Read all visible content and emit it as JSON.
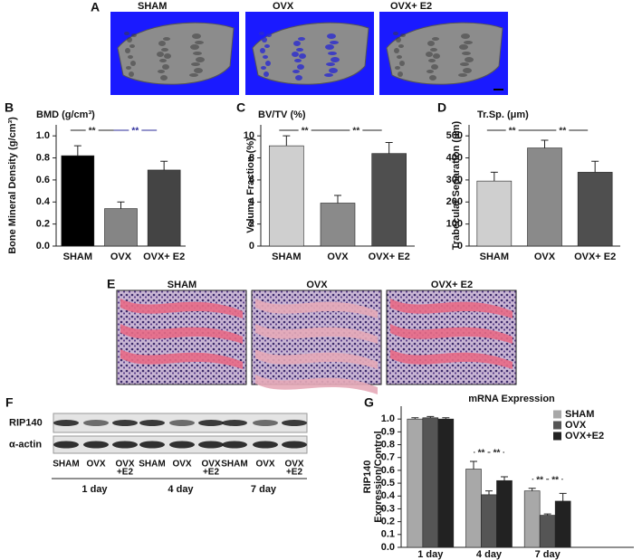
{
  "panels": {
    "A": {
      "label": "A",
      "captions": [
        "SHAM",
        "OVX",
        "OVX+ E2"
      ]
    },
    "E": {
      "label": "E",
      "captions": [
        "SHAM",
        "OVX",
        "OVX+ E2"
      ]
    },
    "F": {
      "label": "F",
      "rows": [
        "RIP140",
        "α-actin"
      ],
      "lanes": [
        [
          "SHAM"
        ],
        [
          "OVX"
        ],
        [
          "OVX",
          "+E2"
        ],
        [
          "SHAM"
        ],
        [
          "OVX"
        ],
        [
          "OVX",
          "+E2"
        ],
        [
          "SHAM"
        ],
        [
          "OVX"
        ],
        [
          "OVX",
          "+E2"
        ]
      ],
      "groups": [
        "1 day",
        "4 day",
        "7 day"
      ]
    }
  },
  "chart_data": [
    {
      "type": "bar",
      "panel": "B",
      "title": "BMD (g/cm³)",
      "ylabel": [
        "Bone Mineral Density (g/cm³)"
      ],
      "categories": [
        "SHAM",
        "OVX",
        "OVX+ E2"
      ],
      "values": [
        0.82,
        0.34,
        0.69
      ],
      "errors": [
        0.09,
        0.06,
        0.08
      ],
      "colors": [
        "#000000",
        "#858585",
        "#444444"
      ],
      "ylim": [
        0,
        1.1
      ],
      "yticks": [
        {
          "value": 0,
          "label": "0.0"
        },
        0.2,
        0.4,
        0.6,
        0.8,
        {
          "value": 1,
          "label": "1.0"
        }
      ],
      "annotations": [
        {
          "text": "**",
          "color": "#222222"
        },
        {
          "text": "**",
          "color": "#2b2b9a"
        }
      ]
    },
    {
      "type": "bar",
      "panel": "C",
      "title": "BV/TV (%)",
      "ylabel": [
        "Volume Fraction (%)"
      ],
      "categories": [
        "SHAM",
        "OVX",
        "OVX+ E2"
      ],
      "values": [
        9.1,
        3.9,
        8.4
      ],
      "errors": [
        0.9,
        0.7,
        1.0
      ],
      "colors": [
        "#cfcfcf",
        "#8a8a8a",
        "#4f4f4f"
      ],
      "ylim": [
        0,
        11
      ],
      "yticks": [
        0,
        2,
        4,
        6,
        8,
        10
      ],
      "annotations": [
        {
          "text": "**",
          "color": "#222222"
        },
        {
          "text": "**",
          "color": "#222222"
        }
      ]
    },
    {
      "type": "bar",
      "panel": "D",
      "title": "Tr.Sp. (μm)",
      "ylabel": [
        "Trabecular Separation (μm)"
      ],
      "categories": [
        "SHAM",
        "OVX",
        "OVX+ E2"
      ],
      "values": [
        295,
        445,
        335
      ],
      "errors": [
        40,
        35,
        50
      ],
      "colors": [
        "#cfcfcf",
        "#8a8a8a",
        "#4f4f4f"
      ],
      "ylim": [
        0,
        550
      ],
      "yticks": [
        0,
        100,
        200,
        300,
        400,
        500
      ],
      "annotations": [
        {
          "text": "**",
          "color": "#222222"
        },
        {
          "text": "**",
          "color": "#222222"
        }
      ]
    },
    {
      "type": "bar",
      "panel": "G",
      "title": "mRNA Expression",
      "ylabel": [
        "RIP140",
        "Expression/Control"
      ],
      "categories": [
        "1 day",
        "4 day",
        "7 day"
      ],
      "series": [
        {
          "name": "SHAM",
          "color": "#a8a8a8",
          "values": [
            1.0,
            0.61,
            0.44
          ],
          "errors": [
            0.01,
            0.06,
            0.02
          ]
        },
        {
          "name": "OVX",
          "color": "#555555",
          "values": [
            1.01,
            0.41,
            0.25
          ],
          "errors": [
            0.01,
            0.03,
            0.01
          ]
        },
        {
          "name": "OVX+E2",
          "color": "#222222",
          "values": [
            1.0,
            0.52,
            0.36
          ],
          "errors": [
            0.01,
            0.03,
            0.06
          ]
        }
      ],
      "ylim": [
        0,
        1.1
      ],
      "yticks": [
        {
          "value": 0,
          "label": "0.0"
        },
        0.1,
        0.2,
        0.3,
        0.4,
        0.5,
        0.6,
        0.7,
        0.8,
        0.9,
        {
          "value": 1,
          "label": "1.0"
        }
      ],
      "annotations": [
        {
          "text": "**",
          "color": "#222222"
        },
        {
          "text": "**",
          "color": "#222222"
        },
        {
          "text": "**",
          "color": "#222222"
        },
        {
          "text": "**",
          "color": "#222222"
        }
      ],
      "legend": "upper right"
    }
  ]
}
